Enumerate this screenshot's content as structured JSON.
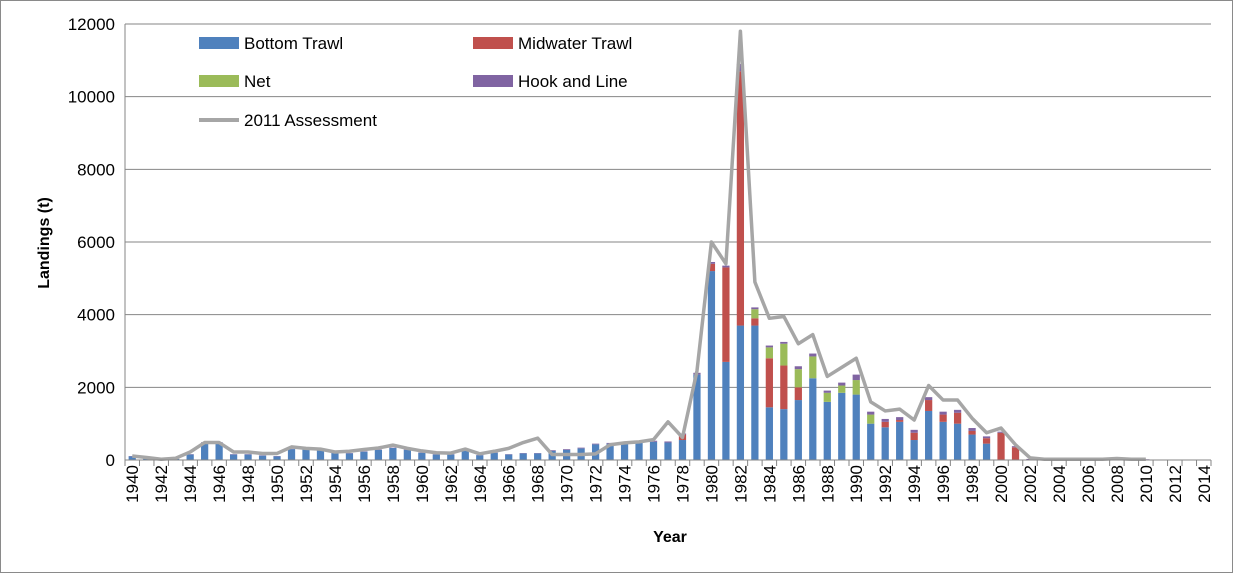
{
  "chart_data": {
    "type": "bar",
    "stacked": true,
    "title": "",
    "xlabel": "Year",
    "ylabel": "Landings (t)",
    "ylim": [
      0,
      12000
    ],
    "yticks": [
      0,
      2000,
      4000,
      6000,
      8000,
      10000,
      12000
    ],
    "xticks": [
      "1940",
      "1942",
      "1944",
      "1946",
      "1948",
      "1950",
      "1952",
      "1954",
      "1956",
      "1958",
      "1960",
      "1962",
      "1964",
      "1966",
      "1968",
      "1970",
      "1972",
      "1974",
      "1976",
      "1978",
      "1980",
      "1982",
      "1984",
      "1986",
      "1988",
      "1990",
      "1992",
      "1994",
      "1996",
      "1998",
      "2000",
      "2002",
      "2004",
      "2006",
      "2008",
      "2010",
      "2012",
      "2014"
    ],
    "grid": "horizontal",
    "legend_position": "top-left, inside plot",
    "categories": [
      "1940",
      "1941",
      "1942",
      "1943",
      "1944",
      "1945",
      "1946",
      "1947",
      "1948",
      "1949",
      "1950",
      "1951",
      "1952",
      "1953",
      "1954",
      "1955",
      "1956",
      "1957",
      "1958",
      "1959",
      "1960",
      "1961",
      "1962",
      "1963",
      "1964",
      "1965",
      "1966",
      "1967",
      "1968",
      "1969",
      "1970",
      "1971",
      "1972",
      "1973",
      "1974",
      "1975",
      "1976",
      "1977",
      "1978",
      "1979",
      "1980",
      "1981",
      "1982",
      "1983",
      "1984",
      "1985",
      "1986",
      "1987",
      "1988",
      "1989",
      "1990",
      "1991",
      "1992",
      "1993",
      "1994",
      "1995",
      "1996",
      "1997",
      "1998",
      "1999",
      "2000",
      "2001",
      "2002",
      "2003",
      "2004",
      "2005",
      "2006",
      "2007",
      "2008",
      "2009",
      "2010",
      "2011",
      "2012",
      "2013",
      "2014"
    ],
    "series": [
      {
        "name": "Bottom Trawl",
        "color": "#4f81bd",
        "values": [
          100,
          50,
          20,
          30,
          150,
          480,
          480,
          150,
          150,
          120,
          100,
          300,
          300,
          280,
          200,
          180,
          230,
          280,
          330,
          280,
          200,
          150,
          150,
          250,
          130,
          200,
          150,
          180,
          180,
          250,
          280,
          320,
          430,
          450,
          450,
          470,
          500,
          480,
          550,
          2350,
          5200,
          2700,
          3700,
          3700,
          1450,
          1400,
          1650,
          2250,
          1600,
          1850,
          1800,
          1000,
          900,
          1050,
          550,
          1350,
          1050,
          1000,
          700,
          450,
          0,
          0,
          0,
          0,
          0,
          0,
          0,
          0,
          0,
          0,
          0,
          0,
          0,
          0,
          0
        ]
      },
      {
        "name": "Midwater Trawl",
        "color": "#c0504d",
        "values": [
          0,
          0,
          0,
          0,
          0,
          0,
          0,
          0,
          0,
          0,
          0,
          0,
          0,
          0,
          0,
          0,
          0,
          0,
          0,
          0,
          0,
          0,
          0,
          0,
          0,
          0,
          0,
          0,
          0,
          0,
          0,
          0,
          0,
          0,
          0,
          0,
          0,
          0,
          150,
          0,
          200,
          2600,
          7000,
          200,
          1350,
          1200,
          350,
          0,
          0,
          0,
          0,
          0,
          150,
          50,
          200,
          300,
          200,
          300,
          100,
          150,
          750,
          350,
          0,
          0,
          0,
          0,
          0,
          0,
          0,
          0,
          0,
          0,
          0,
          0,
          0
        ]
      },
      {
        "name": "Net",
        "color": "#9bbb59",
        "values": [
          0,
          0,
          0,
          0,
          0,
          0,
          0,
          0,
          0,
          0,
          0,
          0,
          0,
          0,
          0,
          0,
          0,
          0,
          0,
          0,
          0,
          0,
          0,
          0,
          0,
          0,
          0,
          0,
          0,
          0,
          0,
          0,
          0,
          0,
          0,
          0,
          0,
          0,
          0,
          0,
          0,
          0,
          0,
          250,
          300,
          600,
          500,
          600,
          250,
          200,
          400,
          250,
          0,
          0,
          0,
          0,
          0,
          0,
          0,
          0,
          0,
          0,
          0,
          0,
          0,
          0,
          0,
          0,
          0,
          0,
          0,
          0,
          0,
          0,
          0
        ]
      },
      {
        "name": "Hook and Line",
        "color": "#8064a2",
        "values": [
          10,
          5,
          5,
          5,
          10,
          10,
          10,
          10,
          10,
          10,
          10,
          10,
          10,
          10,
          10,
          10,
          10,
          10,
          10,
          10,
          10,
          10,
          10,
          10,
          10,
          10,
          10,
          10,
          10,
          20,
          20,
          20,
          20,
          20,
          20,
          30,
          30,
          30,
          30,
          50,
          50,
          50,
          200,
          50,
          50,
          50,
          80,
          80,
          60,
          80,
          150,
          80,
          80,
          80,
          80,
          80,
          80,
          80,
          80,
          50,
          30,
          30,
          30,
          20,
          20,
          20,
          20,
          20,
          20,
          20,
          20,
          0,
          0,
          0,
          0
        ]
      }
    ],
    "lines": [
      {
        "name": "2011 Assessment",
        "color": "#a6a6a6",
        "values": [
          110,
          70,
          20,
          50,
          220,
          480,
          480,
          220,
          220,
          180,
          180,
          360,
          320,
          300,
          220,
          240,
          290,
          330,
          410,
          320,
          250,
          200,
          190,
          300,
          170,
          240,
          320,
          480,
          600,
          150,
          150,
          150,
          170,
          420,
          470,
          500,
          560,
          1050,
          620,
          2450,
          6000,
          5400,
          11800,
          4900,
          3900,
          3950,
          3200,
          3450,
          2300,
          2550,
          2800,
          1600,
          1350,
          1400,
          1100,
          2050,
          1650,
          1650,
          1150,
          750,
          880,
          420,
          60,
          20,
          20,
          20,
          20,
          20,
          40,
          20,
          20,
          null,
          null,
          null,
          null
        ]
      }
    ]
  }
}
